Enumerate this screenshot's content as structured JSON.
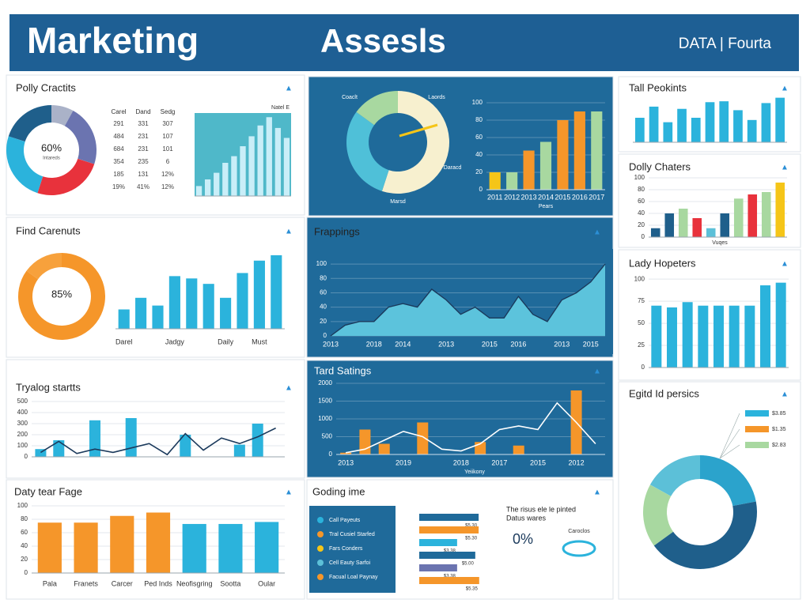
{
  "header": {
    "title": "Marketing",
    "title2": "Assesls",
    "right": "DATA | Fourta"
  },
  "chart_data": [
    {
      "type": "donut",
      "title": "Polly Cractits",
      "center_label": "60%",
      "center_sub": "Intareds",
      "values": [
        8,
        22,
        25,
        25,
        20
      ],
      "colors": [
        "#aab2c8",
        "#6b74b0",
        "#e8323c",
        "#2bb3dc",
        "#1f5f8b"
      ],
      "table": {
        "header": [
          "Carel",
          "Dand",
          "Sedg"
        ],
        "rows": [
          [
            "291",
            "331",
            "307"
          ],
          [
            "484",
            "231",
            "107"
          ],
          [
            "684",
            "231",
            "101"
          ],
          [
            "354",
            "235",
            "6"
          ],
          [
            "185",
            "131",
            "12%"
          ],
          [
            "19%",
            "41%",
            "12%"
          ]
        ]
      }
    },
    {
      "type": "bar",
      "label": "Natel E",
      "values": [
        12,
        20,
        28,
        40,
        48,
        60,
        72,
        85,
        95,
        82,
        70
      ],
      "color": "#c9eef8",
      "ylim": [
        0,
        100
      ]
    },
    {
      "type": "donut",
      "title": "Find Carenuts",
      "center_label": "85%",
      "values": [
        85,
        15
      ],
      "colors": [
        "#f5962a",
        "#f7a13c"
      ]
    },
    {
      "type": "bar",
      "categories": [
        "Darel",
        null,
        null,
        "Jadgy",
        null,
        null,
        "Daily",
        null,
        "Must",
        null
      ],
      "values": [
        25,
        40,
        30,
        68,
        65,
        58,
        40,
        72,
        88,
        95
      ],
      "color": "#2bb3dc",
      "ylim": [
        0,
        100
      ]
    },
    {
      "type": "combo",
      "title": "Tryalog startts",
      "ylim": [
        0,
        500
      ],
      "yticks": [
        0,
        100,
        200,
        300,
        400,
        500
      ],
      "series": [
        {
          "type": "bar",
          "color": "#2bb3dc",
          "values": [
            70,
            150,
            null,
            330,
            null,
            350,
            null,
            null,
            200,
            null,
            null,
            110,
            300,
            null
          ]
        },
        {
          "type": "line",
          "color": "#1b3a5c",
          "values": [
            40,
            140,
            30,
            70,
            40,
            80,
            120,
            20,
            210,
            60,
            170,
            120,
            180,
            260
          ]
        }
      ]
    },
    {
      "type": "bar",
      "title": "Daty tear Fage",
      "categories": [
        "Pala",
        "Franets",
        "Carcer",
        "Ped Inds",
        "Neofisgring",
        "Sootta",
        "Oular"
      ],
      "values": [
        75,
        75,
        85,
        90,
        73,
        73,
        76
      ],
      "colors": [
        "#f5962a",
        "#f5962a",
        "#f5962a",
        "#f5962a",
        "#2bb3dc",
        "#2bb3dc",
        "#2bb3dc"
      ],
      "ylim": [
        0,
        100
      ],
      "yticks": [
        0,
        20,
        40,
        60,
        80,
        100
      ]
    },
    {
      "type": "donut",
      "values": [
        55,
        30,
        15
      ],
      "colors": [
        "#f7f0cf",
        "#4fc0d8",
        "#a8d8a0"
      ],
      "labels": [
        "Coaclt",
        "Laords",
        "Daracd"
      ],
      "subtitle": "Marsd"
    },
    {
      "type": "bar",
      "categories": [
        "2011",
        "2012",
        "2013",
        "2014",
        "2015",
        "2016",
        "2017"
      ],
      "values": [
        20,
        20,
        45,
        55,
        80,
        90,
        90
      ],
      "colors": [
        "#f5c518",
        "#a8d8a0",
        "#f5962a",
        "#a8d8a0",
        "#f5962a",
        "#f5962a",
        "#a8d8a0"
      ],
      "ylim": [
        0,
        100
      ],
      "yticks": [
        0,
        20,
        40,
        60,
        80,
        100
      ],
      "xlabel": "Pears"
    },
    {
      "type": "area",
      "title": "Frappings",
      "color": "#5cc3dc",
      "line_color": "#1b3a5c",
      "categories": [
        "2013",
        null,
        null,
        "2018",
        null,
        "2014",
        null,
        null,
        "2013",
        null,
        null,
        "2015",
        null,
        "2016",
        null,
        null,
        "2013",
        null,
        "2015",
        null
      ],
      "values": [
        0,
        15,
        20,
        20,
        40,
        45,
        40,
        65,
        50,
        30,
        40,
        25,
        25,
        55,
        30,
        20,
        50,
        60,
        75,
        100
      ],
      "ylim": [
        0,
        110
      ],
      "yticks": [
        0,
        20,
        40,
        60,
        80,
        100
      ]
    },
    {
      "type": "combo",
      "title": "Tard Satings",
      "ylim": [
        0,
        2000
      ],
      "yticks": [
        0,
        500,
        1000,
        1500,
        2000
      ],
      "xlabel": "Yeiikony",
      "categories": [
        "2013",
        null,
        null,
        "2019",
        null,
        null,
        "2018",
        null,
        "2017",
        null,
        "2015",
        null,
        "2012",
        null
      ],
      "series": [
        {
          "type": "bar",
          "color": "#f5962a",
          "values": [
            50,
            700,
            300,
            null,
            900,
            null,
            null,
            350,
            null,
            250,
            null,
            null,
            1800,
            null
          ]
        },
        {
          "type": "line",
          "color": "#ffffff",
          "values": [
            50,
            150,
            400,
            650,
            500,
            150,
            100,
            300,
            700,
            800,
            700,
            1450,
            900,
            300
          ]
        }
      ]
    },
    {
      "type": "list",
      "title": "Goding ime",
      "items": [
        {
          "name": "Call Payeuts",
          "color": "#2bb3dc"
        },
        {
          "name": "Tral Cusiel Starfed",
          "color": "#f5962a"
        },
        {
          "name": "Fars Conders",
          "color": "#f5c518"
        },
        {
          "name": "Cell Eauty Sarfoi",
          "color": "#5cc0d8"
        },
        {
          "name": "Facual Loal Paynay",
          "color": "#f5962a"
        }
      ],
      "values": [
        5.3,
        5.3,
        3.38,
        5.0,
        3.38,
        5.35
      ],
      "value_labels": [
        "$5.30",
        "$5.30",
        "$3.38",
        "$5.00",
        "$3.38",
        "$5.35"
      ],
      "colors": [
        "#1f6a9a",
        "#f5962a",
        "#2bb3dc",
        "#1f6a9a",
        "#6b74b0",
        "#f5962a"
      ],
      "xlim": [
        0,
        6
      ],
      "note": "The risus ele le pinted",
      "note2": "Datus wares",
      "big": "0%",
      "side": "Caroclos"
    },
    {
      "type": "bar",
      "title": "Tall Peokints",
      "values": [
        55,
        80,
        45,
        75,
        55,
        90,
        92,
        72,
        50,
        88,
        100
      ],
      "color": "#2bb3dc",
      "ylim": [
        0,
        110
      ]
    },
    {
      "type": "bar",
      "title": "Dolly Chaters",
      "values": [
        15,
        40,
        48,
        32,
        15,
        40,
        65,
        72,
        76,
        92
      ],
      "colors": [
        "#1f5f8b",
        "#1f5f8b",
        "#a8d8a0",
        "#e8323c",
        "#5cc0d8",
        "#1f5f8b",
        "#a8d8a0",
        "#e8323c",
        "#a8d8a0",
        "#f5c518"
      ],
      "ylim": [
        0,
        100
      ],
      "yticks": [
        0,
        20,
        40,
        60,
        80,
        100
      ],
      "xlabel": "Vuqes"
    },
    {
      "type": "bar",
      "title": "Lady Hopeters",
      "values": [
        70,
        68,
        74,
        70,
        70,
        70,
        70,
        93,
        96
      ],
      "color": "#2bb3dc",
      "ylim": [
        0,
        110
      ],
      "yticks": [
        0,
        25,
        50,
        75,
        100
      ]
    },
    {
      "type": "donut",
      "title": "Egitd Id persics",
      "values": [
        22,
        43,
        18,
        17
      ],
      "colors": [
        "#2ba3cc",
        "#1f5f8b",
        "#a8d8a0",
        "#5cc0d8"
      ],
      "legend": [
        {
          "label": "$3.85",
          "color": "#2bb3dc"
        },
        {
          "label": "$1.35",
          "color": "#f5962a"
        },
        {
          "label": "$2.83",
          "color": "#a8d8a0"
        }
      ]
    }
  ]
}
